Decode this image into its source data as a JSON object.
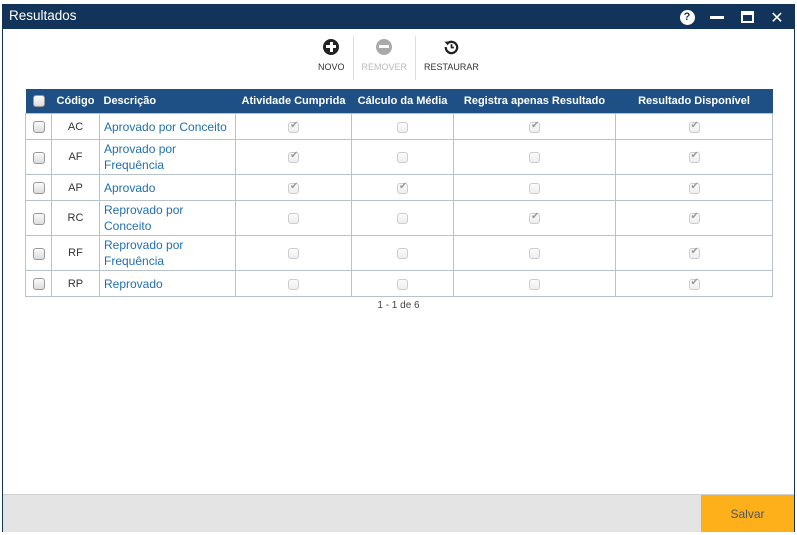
{
  "window": {
    "title": "Resultados",
    "controls": {
      "help": "?",
      "close": "✕"
    }
  },
  "toolbar": {
    "new_label": "NOVO",
    "remove_label": "REMOVER",
    "restore_label": "RESTAURAR"
  },
  "table": {
    "headers": {
      "code": "Código",
      "description": "Descrição",
      "activity_done": "Atividade Cumprida",
      "average_calc": "Cálculo da Média",
      "result_only": "Registra apenas Resultado",
      "result_available": "Resultado Disponível"
    },
    "rows": [
      {
        "code": "AC",
        "description": "Aprovado por Conceito",
        "activity_done": true,
        "average_calc": false,
        "result_only": true,
        "result_available": true
      },
      {
        "code": "AF",
        "description": "Aprovado por Frequência",
        "activity_done": true,
        "average_calc": false,
        "result_only": false,
        "result_available": true
      },
      {
        "code": "AP",
        "description": "Aprovado",
        "activity_done": true,
        "average_calc": true,
        "result_only": false,
        "result_available": true
      },
      {
        "code": "RC",
        "description": "Reprovado por Conceito",
        "activity_done": false,
        "average_calc": false,
        "result_only": true,
        "result_available": true
      },
      {
        "code": "RF",
        "description": "Reprovado por Frequência",
        "activity_done": false,
        "average_calc": false,
        "result_only": false,
        "result_available": true
      },
      {
        "code": "RP",
        "description": "Reprovado",
        "activity_done": false,
        "average_calc": false,
        "result_only": false,
        "result_available": true
      }
    ]
  },
  "pagination": {
    "text": "1 - 1 de 6"
  },
  "footer": {
    "save_label": "Salvar"
  },
  "colors": {
    "titlebar": "#12345a",
    "header": "#1e5085",
    "link": "#1f6fb3",
    "save": "#fdb01a",
    "footer": "#e4e4e4"
  }
}
